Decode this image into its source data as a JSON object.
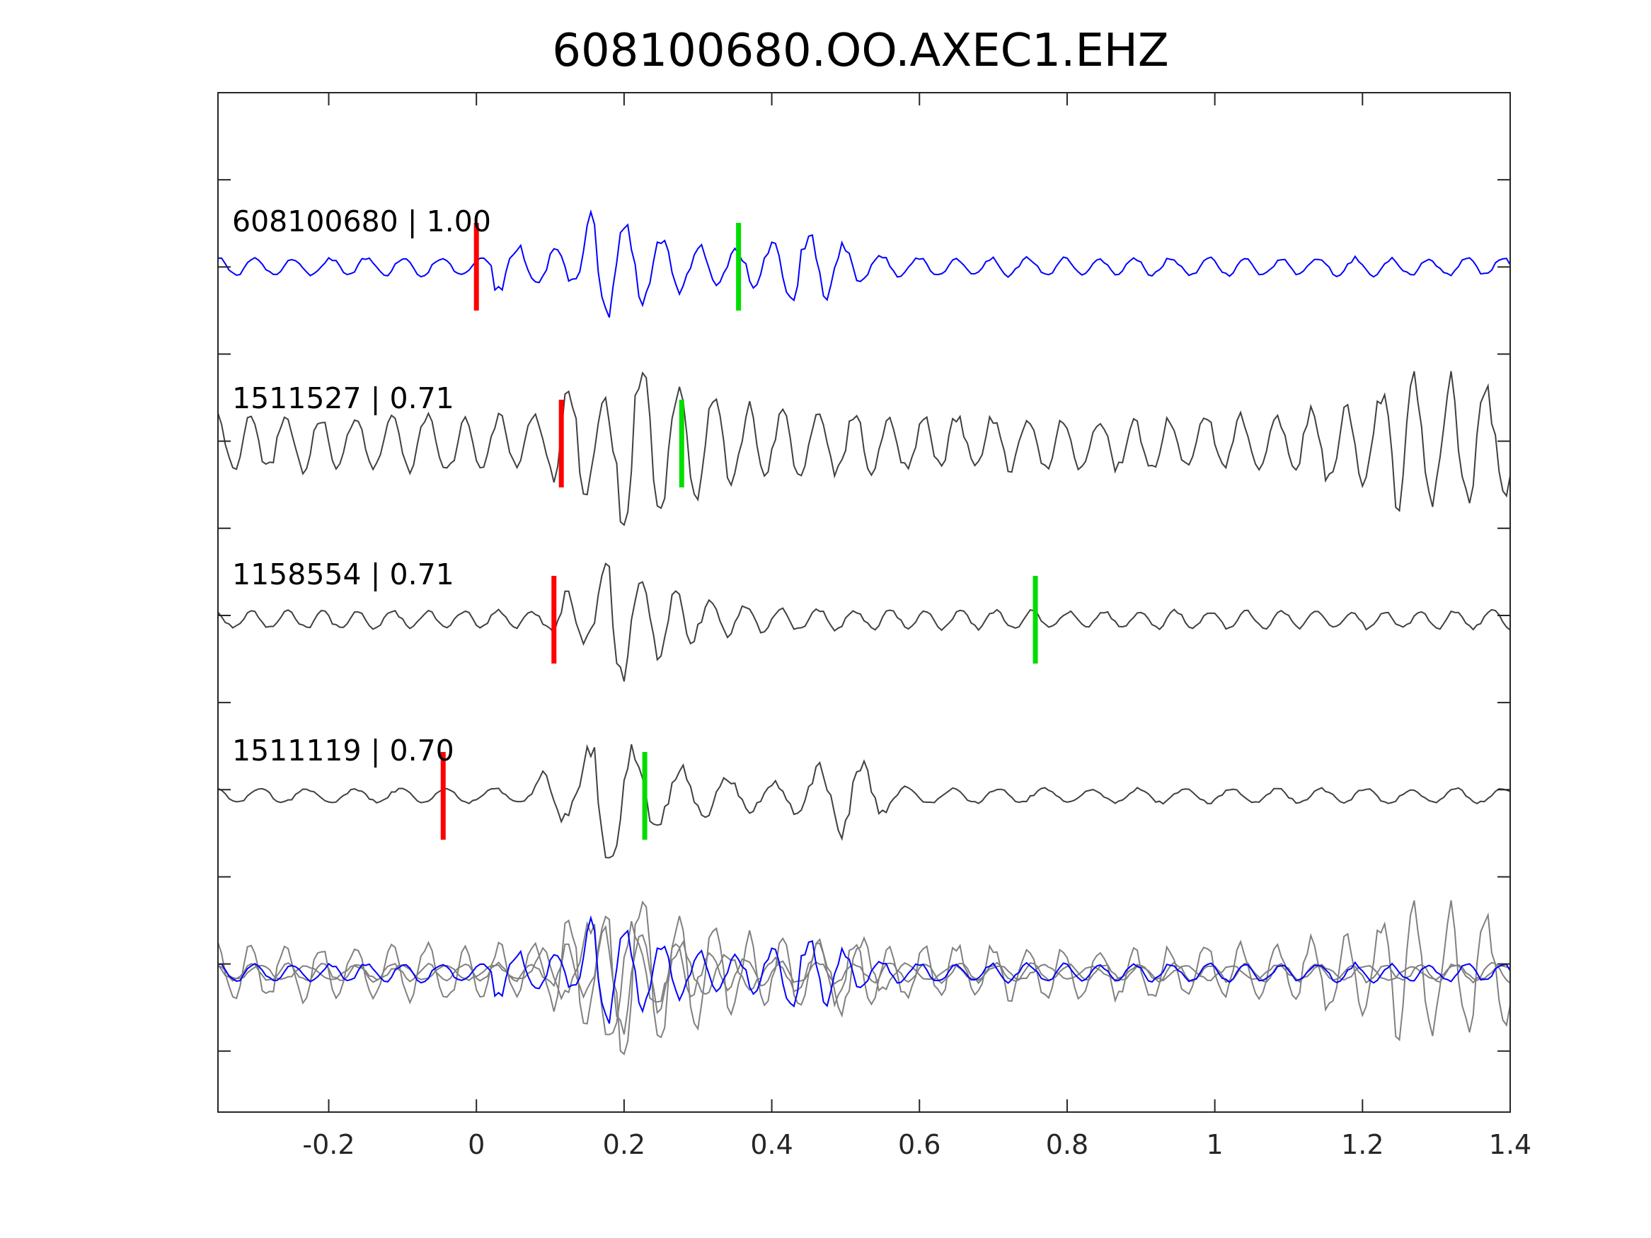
{
  "chart_data": {
    "type": "line",
    "title": "608100680.OO.AXEC1.EHZ",
    "xlabel": "",
    "ylabel": "",
    "xlim": [
      -0.35,
      1.4
    ],
    "x_ticks": [
      "-0.2",
      "0",
      "0.2",
      "0.4",
      "0.6",
      "0.8",
      "1",
      "1.2",
      "1.4"
    ],
    "x_tick_values": [
      -0.2,
      0,
      0.2,
      0.4,
      0.6,
      0.8,
      1,
      1.2,
      1.4
    ],
    "y_tick_count": 11,
    "grid": false,
    "colors": {
      "template": "#0000ff",
      "match": "#404040",
      "overlay": "#808080",
      "p_pick": "#ff0000",
      "s_pick": "#00dd00"
    },
    "series": [
      {
        "label": "608100680 | 1.00",
        "color": "#0000ff",
        "p_pick": 0.0,
        "s_pick": 0.355
      },
      {
        "label": "1511527 | 0.71",
        "color": "#404040",
        "p_pick": 0.115,
        "s_pick": 0.278
      },
      {
        "label": "1158554 | 0.71",
        "color": "#404040",
        "p_pick": 0.105,
        "s_pick": 0.757
      },
      {
        "label": "1511119 | 0.70",
        "color": "#404040",
        "p_pick": -0.045,
        "s_pick": 0.228
      }
    ],
    "overlay": {
      "description": "stacked overlay of all traces"
    }
  }
}
